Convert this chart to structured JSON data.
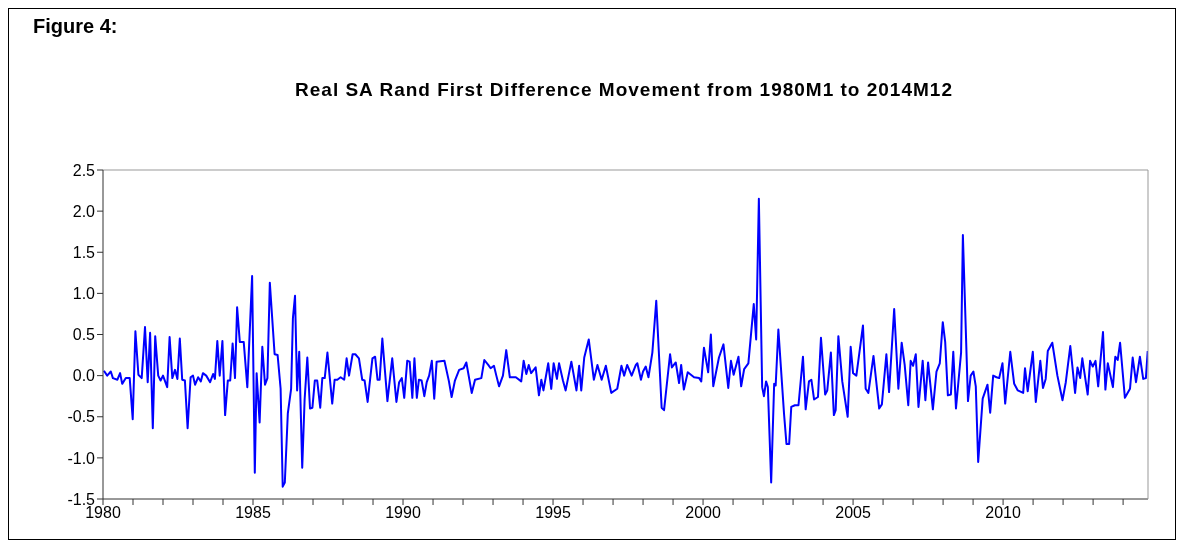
{
  "chart_data": {
    "type": "line",
    "title": "Real SA Rand First Difference Movement from 1980M1 to 2014M12",
    "annotations": [
      "Figure 4:"
    ],
    "xlim": [
      1980,
      2014.83
    ],
    "xticks": [
      1980,
      {
        "value": 1981,
        "label": null
      },
      {
        "value": 1982,
        "label": null
      },
      {
        "value": 1983,
        "label": null
      },
      {
        "value": 1984,
        "label": null
      },
      1985,
      {
        "value": 1986,
        "label": null
      },
      {
        "value": 1987,
        "label": null
      },
      {
        "value": 1988,
        "label": null
      },
      {
        "value": 1989,
        "label": null
      },
      1990,
      {
        "value": 1991,
        "label": null
      },
      {
        "value": 1992,
        "label": null
      },
      {
        "value": 1993,
        "label": null
      },
      {
        "value": 1994,
        "label": null
      },
      1995,
      {
        "value": 1996,
        "label": null
      },
      {
        "value": 1997,
        "label": null
      },
      {
        "value": 1998,
        "label": null
      },
      {
        "value": 1999,
        "label": null
      },
      2000,
      {
        "value": 2001,
        "label": null
      },
      {
        "value": 2002,
        "label": null
      },
      {
        "value": 2003,
        "label": null
      },
      {
        "value": 2004,
        "label": null
      },
      2005,
      {
        "value": 2006,
        "label": null
      },
      {
        "value": 2007,
        "label": null
      },
      {
        "value": 2008,
        "label": null
      },
      {
        "value": 2009,
        "label": null
      },
      2010,
      {
        "value": 2011,
        "label": null
      },
      {
        "value": 2012,
        "label": null
      },
      {
        "value": 2013,
        "label": null
      },
      {
        "value": 2014,
        "label": null
      }
    ],
    "ylim": [
      -1.5,
      2.5
    ],
    "yticks": [
      {
        "value": -1.5,
        "label": "-1.5"
      },
      {
        "value": -1.0,
        "label": "-1.0"
      },
      {
        "value": -0.5,
        "label": "-0.5"
      },
      {
        "value": 0,
        "label": "0.0"
      },
      {
        "value": 0.5,
        "label": "0.5"
      },
      {
        "value": 1.0,
        "label": "1.0"
      },
      {
        "value": 1.5,
        "label": "1.5"
      },
      {
        "value": 2.0,
        "label": "2.0"
      },
      {
        "value": 2.5,
        "label": "2.5"
      }
    ],
    "marker": "none",
    "line_style": "solid",
    "series": [
      {
        "color": "#0000ff",
        "x": [
          1980.03,
          1980.14,
          1980.26,
          1980.33,
          1980.48,
          1980.57,
          1980.64,
          1980.76,
          1980.89,
          1980.99,
          1981.08,
          1981.18,
          1981.29,
          1981.4,
          1981.49,
          1981.57,
          1981.66,
          1981.74,
          1981.84,
          1981.92,
          1982.0,
          1982.14,
          1982.22,
          1982.31,
          1982.4,
          1982.48,
          1982.56,
          1982.64,
          1982.73,
          1982.82,
          1982.92,
          1983.0,
          1983.07,
          1983.17,
          1983.26,
          1983.33,
          1983.44,
          1983.57,
          1983.67,
          1983.73,
          1983.81,
          1983.89,
          1983.98,
          1984.07,
          1984.16,
          1984.24,
          1984.32,
          1984.4,
          1984.47,
          1984.56,
          1984.69,
          1984.81,
          1984.97,
          1985.06,
          1985.12,
          1985.22,
          1985.31,
          1985.4,
          1985.48,
          1985.56,
          1985.72,
          1985.82,
          1985.92,
          1985.99,
          1986.06,
          1986.16,
          1986.27,
          1986.33,
          1986.4,
          1986.47,
          1986.54,
          1986.64,
          1986.72,
          1986.81,
          1986.9,
          1986.98,
          1987.06,
          1987.14,
          1987.24,
          1987.31,
          1987.39,
          1987.48,
          1987.64,
          1987.72,
          1987.81,
          1987.92,
          1988.04,
          1988.12,
          1988.2,
          1988.32,
          1988.41,
          1988.53,
          1988.64,
          1988.72,
          1988.82,
          1988.98,
          1989.07,
          1989.15,
          1989.22,
          1989.31,
          1989.48,
          1989.64,
          1989.78,
          1989.87,
          1989.96,
          1990.04,
          1990.14,
          1990.22,
          1990.31,
          1990.38,
          1990.46,
          1990.53,
          1990.62,
          1990.71,
          1990.79,
          1990.87,
          1990.96,
          1991.04,
          1991.12,
          1991.38,
          1991.53,
          1991.62,
          1991.73,
          1991.87,
          1992.02,
          1992.11,
          1992.29,
          1992.4,
          1992.61,
          1992.71,
          1992.84,
          1992.92,
          1993.03,
          1993.11,
          1993.2,
          1993.33,
          1993.44,
          1993.56,
          1993.76,
          1993.94,
          1994.02,
          1994.11,
          1994.19,
          1994.27,
          1994.42,
          1994.53,
          1994.61,
          1994.68,
          1994.84,
          1994.94,
          1995.02,
          1995.13,
          1995.2,
          1995.33,
          1995.42,
          1995.61,
          1995.78,
          1995.87,
          1995.94,
          1996.04,
          1996.19,
          1996.36,
          1996.48,
          1996.62,
          1996.76,
          1996.94,
          1997.14,
          1997.28,
          1997.37,
          1997.47,
          1997.62,
          1997.76,
          1997.81,
          1997.93,
          1998.0,
          1998.09,
          1998.18,
          1998.31,
          1998.44,
          1998.62,
          1998.7,
          1998.9,
          1998.96,
          1999.09,
          1999.2,
          1999.27,
          1999.36,
          1999.49,
          1999.7,
          1999.87,
          1999.94,
          2000.03,
          2000.17,
          2000.26,
          2000.34,
          2000.53,
          2000.68,
          2000.84,
          2000.93,
          2001.02,
          2001.18,
          2001.27,
          2001.37,
          2001.51,
          2001.69,
          2001.77,
          2001.86,
          2001.97,
          2002.03,
          2002.1,
          2002.16,
          2002.27,
          2002.37,
          2002.42,
          2002.51,
          2002.7,
          2002.78,
          2002.87,
          2002.94,
          2003.06,
          2003.18,
          2003.33,
          2003.42,
          2003.53,
          2003.61,
          2003.7,
          2003.83,
          2003.93,
          2004.07,
          2004.14,
          2004.26,
          2004.36,
          2004.42,
          2004.51,
          2004.64,
          2004.82,
          2004.92,
          2005.0,
          2005.11,
          2005.33,
          2005.42,
          2005.51,
          2005.68,
          2005.87,
          2005.96,
          2006.11,
          2006.2,
          2006.37,
          2006.51,
          2006.62,
          2006.72,
          2006.84,
          2006.92,
          2007.0,
          2007.09,
          2007.18,
          2007.32,
          2007.41,
          2007.5,
          2007.66,
          2007.78,
          2007.89,
          2007.99,
          2008.07,
          2008.16,
          2008.26,
          2008.34,
          2008.43,
          2008.6,
          2008.66,
          2008.83,
          2008.92,
          2009.01,
          2009.09,
          2009.17,
          2009.32,
          2009.48,
          2009.57,
          2009.67,
          2009.78,
          2009.87,
          2009.98,
          2010.07,
          2010.24,
          2010.37,
          2010.49,
          2010.67,
          2010.73,
          2010.82,
          2010.99,
          2011.09,
          2011.24,
          2011.33,
          2011.42,
          2011.49,
          2011.64,
          2011.81,
          2011.98,
          2012.09,
          2012.24,
          2012.4,
          2012.48,
          2012.57,
          2012.64,
          2012.82,
          2012.9,
          2012.99,
          2013.08,
          2013.17,
          2013.33,
          2013.41,
          2013.49,
          2013.66,
          2013.74,
          2013.82,
          2013.9,
          2014.06,
          2014.23,
          2014.32,
          2014.43,
          2014.56,
          2014.67,
          2014.76,
          2014.82
        ],
        "values": [
          0.06,
          0.0,
          0.05,
          -0.03,
          -0.05,
          0.03,
          -0.1,
          -0.03,
          -0.03,
          -0.53,
          0.54,
          0.01,
          -0.03,
          0.59,
          -0.08,
          0.52,
          -0.64,
          0.48,
          0.0,
          -0.06,
          0.0,
          -0.14,
          0.47,
          -0.03,
          0.07,
          -0.04,
          0.45,
          -0.05,
          -0.06,
          -0.64,
          -0.02,
          0.0,
          -0.11,
          -0.02,
          -0.07,
          0.03,
          0.0,
          -0.08,
          0.02,
          -0.04,
          0.42,
          0.0,
          0.42,
          -0.48,
          -0.06,
          -0.06,
          0.39,
          -0.03,
          0.83,
          0.41,
          0.41,
          -0.14,
          1.21,
          -1.18,
          0.03,
          -0.57,
          0.35,
          -0.11,
          -0.03,
          1.13,
          0.26,
          0.25,
          -0.16,
          -1.35,
          -1.3,
          -0.46,
          -0.16,
          0.7,
          0.97,
          -0.18,
          0.29,
          -1.12,
          -0.29,
          0.22,
          -0.4,
          -0.39,
          -0.06,
          -0.06,
          -0.39,
          -0.03,
          -0.03,
          0.28,
          -0.34,
          -0.05,
          -0.05,
          -0.02,
          -0.05,
          0.21,
          0.0,
          0.26,
          0.26,
          0.21,
          -0.05,
          -0.06,
          -0.32,
          0.21,
          0.23,
          -0.05,
          -0.05,
          0.45,
          -0.31,
          0.21,
          -0.32,
          -0.08,
          -0.03,
          -0.27,
          0.18,
          0.17,
          -0.27,
          0.21,
          -0.27,
          -0.05,
          -0.06,
          -0.25,
          -0.08,
          0.0,
          0.18,
          -0.28,
          0.17,
          0.18,
          -0.07,
          -0.26,
          -0.06,
          0.07,
          0.09,
          0.16,
          -0.21,
          -0.05,
          -0.03,
          0.19,
          0.13,
          0.09,
          0.12,
          0.0,
          -0.13,
          0.0,
          0.31,
          -0.02,
          -0.02,
          -0.07,
          0.18,
          0.02,
          0.13,
          0.03,
          0.1,
          -0.24,
          -0.05,
          -0.18,
          0.15,
          -0.16,
          0.15,
          -0.04,
          0.15,
          -0.06,
          -0.18,
          0.17,
          -0.18,
          0.12,
          -0.18,
          0.22,
          0.44,
          -0.05,
          0.13,
          -0.05,
          0.12,
          -0.21,
          -0.16,
          0.12,
          0.0,
          0.13,
          0.0,
          0.13,
          0.15,
          -0.05,
          0.05,
          0.11,
          -0.02,
          0.28,
          0.91,
          -0.39,
          -0.42,
          0.26,
          0.1,
          0.16,
          -0.09,
          0.13,
          -0.17,
          0.04,
          -0.02,
          -0.03,
          -0.07,
          0.34,
          0.04,
          0.5,
          -0.13,
          0.22,
          0.38,
          -0.15,
          0.18,
          0.01,
          0.23,
          -0.13,
          0.08,
          0.15,
          0.87,
          0.44,
          2.15,
          -0.14,
          -0.25,
          -0.07,
          -0.14,
          -1.3,
          -0.1,
          -0.12,
          0.56,
          -0.47,
          -0.83,
          -0.83,
          -0.38,
          -0.36,
          -0.36,
          0.23,
          -0.41,
          -0.07,
          -0.05,
          -0.29,
          -0.26,
          0.46,
          -0.23,
          -0.18,
          0.28,
          -0.48,
          -0.42,
          0.48,
          -0.07,
          -0.5,
          0.35,
          0.03,
          0.0,
          0.61,
          -0.16,
          -0.21,
          0.24,
          -0.4,
          -0.35,
          0.26,
          -0.2,
          0.81,
          -0.16,
          0.4,
          0.13,
          -0.36,
          0.18,
          0.12,
          0.26,
          -0.38,
          0.18,
          -0.3,
          0.16,
          -0.41,
          0.05,
          0.15,
          0.65,
          0.41,
          -0.24,
          -0.23,
          0.29,
          -0.4,
          0.28,
          1.71,
          -0.31,
          0.0,
          0.05,
          -0.13,
          -1.05,
          -0.28,
          -0.11,
          -0.45,
          0.0,
          -0.02,
          -0.03,
          0.15,
          -0.34,
          0.29,
          -0.1,
          -0.18,
          -0.21,
          0.09,
          -0.19,
          0.29,
          -0.32,
          0.18,
          -0.15,
          -0.04,
          0.3,
          0.4,
          0.0,
          -0.3,
          -0.08,
          0.36,
          -0.21,
          0.1,
          -0.03,
          0.21,
          -0.23,
          0.18,
          0.11,
          0.18,
          -0.13,
          0.53,
          -0.17,
          0.15,
          -0.14,
          0.23,
          0.19,
          0.4,
          -0.27,
          -0.16,
          0.22,
          -0.08,
          0.23,
          -0.04,
          -0.03,
          0.3
        ]
      }
    ]
  }
}
